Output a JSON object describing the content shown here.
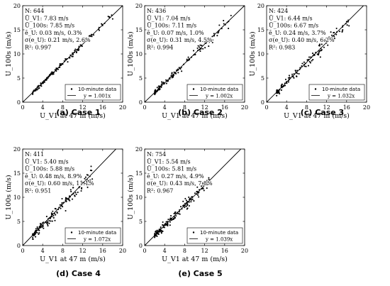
{
  "chart_data": [
    {
      "type": "scatter",
      "caption_letter": "(a)",
      "caption_name": "Case 1",
      "xlabel": "U_V1 at 47 m (m/s)",
      "ylabel": "U_100s (m/s)",
      "xlim": [
        0,
        20
      ],
      "ylim": [
        0,
        20
      ],
      "xticks": [
        0,
        4,
        8,
        12,
        16,
        20
      ],
      "yticks": [
        0,
        5,
        10,
        15,
        20
      ],
      "annotations": [
        "N: 644",
        "Ū_V1: 7.83 m/s",
        "Ū_100s: 7.85 m/s",
        "ē_U: 0.03 m/s, 0.3%",
        "σ(e_U): 0.21 m/s, 2.6%",
        "R²: 0.997"
      ],
      "legend": [
        "10-minute data",
        "y = 1.001x"
      ],
      "fit_slope": 1.001,
      "scatter_range": [
        2,
        18
      ],
      "scatter_noise": 0.22,
      "scatter_count": 130,
      "series": [
        {
          "name": "10-minute data"
        },
        {
          "name": "y = 1.001x"
        }
      ]
    },
    {
      "type": "scatter",
      "caption_letter": "(b)",
      "caption_name": "Case 2",
      "xlabel": "U_V1 at 47 m (m/s)",
      "ylabel": "U_100s (m/s)",
      "xlim": [
        0,
        20
      ],
      "ylim": [
        0,
        20
      ],
      "xticks": [
        0,
        4,
        8,
        12,
        16,
        20
      ],
      "yticks": [
        0,
        5,
        10,
        15,
        20
      ],
      "annotations": [
        "N: 436",
        "Ū_V1: 7.04 m/s",
        "Ū_100s: 7.11 m/s",
        "ē_U: 0.07 m/s, 1.0%",
        "σ(e_U): 0.31 m/s, 4.5%",
        "R²: 0.994"
      ],
      "legend": [
        "10-minute data",
        "y = 1.002x"
      ],
      "fit_slope": 1.002,
      "scatter_range": [
        2,
        17.5
      ],
      "scatter_noise": 0.32,
      "scatter_count": 120,
      "series": [
        {
          "name": "10-minute data"
        },
        {
          "name": "y = 1.002x"
        }
      ]
    },
    {
      "type": "scatter",
      "caption_letter": "(c)",
      "caption_name": "Case 3",
      "xlabel": "U_V1 at 47 m (m/s)",
      "ylabel": "U_100s (m/s)",
      "xlim": [
        0,
        20
      ],
      "ylim": [
        0,
        20
      ],
      "xticks": [
        0,
        4,
        8,
        12,
        16,
        20
      ],
      "yticks": [
        0,
        5,
        10,
        15,
        20
      ],
      "annotations": [
        "N: 424",
        "Ū_V1: 6.44 m/s",
        "Ū_100s: 6.67 m/s",
        "ē_U: 0.24 m/s, 3.7%",
        "σ(e_U): 0.40 m/s, 6.2%",
        "R²: 0.983"
      ],
      "legend": [
        "10-minute data",
        "y = 1.032x"
      ],
      "fit_slope": 1.032,
      "scatter_range": [
        2,
        17
      ],
      "scatter_noise": 0.42,
      "scatter_count": 130,
      "series": [
        {
          "name": "10-minute data"
        },
        {
          "name": "y = 1.032x"
        }
      ]
    },
    {
      "type": "scatter",
      "caption_letter": "(d)",
      "caption_name": "Case 4",
      "xlabel": "U_V1 at 47 m (m/s)",
      "ylabel": "U_100s (m/s)",
      "xlim": [
        0,
        20
      ],
      "ylim": [
        0,
        20
      ],
      "xticks": [
        0,
        4,
        8,
        12,
        16,
        20
      ],
      "yticks": [
        0,
        5,
        10,
        15,
        20
      ],
      "annotations": [
        "N: 411",
        "Ū_V1: 5.40 m/s",
        "Ū_100s: 5.88 m/s",
        "ē_U: 0.48 m/s, 8.9%",
        "σ(e_U): 0.60 m/s, 11.1%",
        "R²: 0.951"
      ],
      "legend": [
        "10-minute data",
        "y = 1.072x"
      ],
      "fit_slope": 1.072,
      "scatter_range": [
        2,
        14
      ],
      "scatter_noise": 0.6,
      "scatter_count": 140,
      "series": [
        {
          "name": "10-minute data"
        },
        {
          "name": "y = 1.072x"
        }
      ]
    },
    {
      "type": "scatter",
      "caption_letter": "(e)",
      "caption_name": "Case 5",
      "xlabel": "U_V1 at 47 m (m/s)",
      "ylabel": "U_100s (m/s)",
      "xlim": [
        0,
        20
      ],
      "ylim": [
        0,
        20
      ],
      "xticks": [
        0,
        4,
        8,
        12,
        16,
        20
      ],
      "yticks": [
        0,
        5,
        10,
        15,
        20
      ],
      "annotations": [
        "N: 754",
        "Ū_V1: 5.54 m/s",
        "Ū_100s: 5.81 m/s",
        "ē_U: 0.27 m/s, 4.9%",
        "σ(e_U): 0.43 m/s, 7.8%",
        "R²: 0.967"
      ],
      "legend": [
        "10-minute data",
        "y = 1.039x"
      ],
      "fit_slope": 1.039,
      "scatter_range": [
        2,
        13
      ],
      "scatter_noise": 0.45,
      "scatter_count": 160,
      "series": [
        {
          "name": "10-minute data"
        },
        {
          "name": "y = 1.039x"
        }
      ]
    }
  ]
}
